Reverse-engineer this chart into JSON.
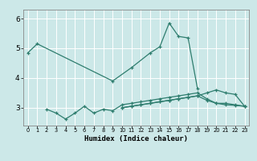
{
  "x": [
    0,
    1,
    2,
    3,
    4,
    5,
    6,
    7,
    8,
    9,
    10,
    11,
    12,
    13,
    14,
    15,
    16,
    17,
    18,
    19,
    20,
    21,
    22,
    23
  ],
  "line1": [
    4.85,
    5.15,
    null,
    null,
    null,
    null,
    null,
    null,
    null,
    3.9,
    null,
    4.35,
    null,
    4.85,
    5.05,
    5.85,
    5.4,
    5.35,
    3.65,
    null,
    null,
    null,
    null,
    null
  ],
  "line2": [
    null,
    null,
    2.95,
    2.82,
    2.62,
    2.82,
    3.05,
    2.82,
    2.95,
    2.9,
    3.1,
    3.15,
    3.2,
    3.25,
    3.3,
    3.35,
    3.4,
    3.45,
    3.5,
    3.3,
    3.15,
    3.15,
    3.1,
    3.05
  ],
  "line3": [
    null,
    null,
    null,
    null,
    null,
    null,
    null,
    null,
    null,
    null,
    3.0,
    3.05,
    3.1,
    3.15,
    3.2,
    3.25,
    3.3,
    3.35,
    3.4,
    3.25,
    3.15,
    3.1,
    3.08,
    3.05
  ],
  "line4": [
    null,
    null,
    null,
    null,
    null,
    null,
    null,
    null,
    null,
    null,
    3.0,
    3.05,
    3.1,
    3.15,
    3.2,
    3.25,
    3.3,
    3.35,
    3.4,
    3.5,
    3.6,
    3.5,
    3.45,
    3.05
  ],
  "color": "#2e7d6e",
  "bg_color": "#cce8e8",
  "grid_color": "#ffffff",
  "xlabel": "Humidex (Indice chaleur)",
  "ylabel_ticks": [
    3,
    4,
    5,
    6
  ],
  "xlim": [
    -0.5,
    23.5
  ],
  "ylim": [
    2.4,
    6.3
  ]
}
